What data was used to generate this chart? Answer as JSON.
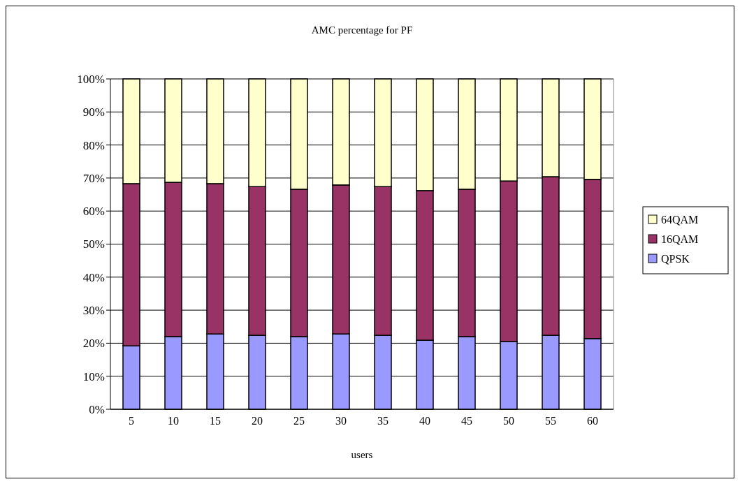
{
  "chart_data": {
    "type": "bar",
    "title": "AMC percentage for PF",
    "xlabel": "users",
    "stacked": true,
    "categories": [
      "5",
      "10",
      "15",
      "20",
      "25",
      "30",
      "35",
      "40",
      "45",
      "50",
      "55",
      "60"
    ],
    "series": [
      {
        "name": "QPSK",
        "color": "#9999ff",
        "values": [
          19.2,
          22.0,
          22.8,
          22.4,
          22.0,
          22.8,
          22.4,
          20.9,
          22.0,
          20.5,
          22.4,
          21.4
        ]
      },
      {
        "name": "16QAM",
        "color": "#993366",
        "values": [
          49.1,
          46.7,
          45.5,
          45.0,
          44.6,
          45.1,
          45.0,
          45.3,
          44.6,
          48.6,
          48.0,
          48.2
        ]
      },
      {
        "name": "64QAM",
        "color": "#ffffcc",
        "values": [
          31.7,
          31.3,
          31.7,
          32.6,
          33.4,
          32.1,
          32.6,
          33.8,
          33.4,
          30.9,
          29.6,
          30.4
        ]
      }
    ],
    "ylim": [
      0,
      100
    ],
    "yticks": [
      {
        "value": 0,
        "label": "0%"
      },
      {
        "value": 10,
        "label": "10%"
      },
      {
        "value": 20,
        "label": "20%"
      },
      {
        "value": 30,
        "label": "30%"
      },
      {
        "value": 40,
        "label": "40%"
      },
      {
        "value": 50,
        "label": "50%"
      },
      {
        "value": 60,
        "label": "60%"
      },
      {
        "value": 70,
        "label": "70%"
      },
      {
        "value": 80,
        "label": "80%"
      },
      {
        "value": 90,
        "label": "90%"
      },
      {
        "value": 100,
        "label": "100%"
      }
    ],
    "grid": "y",
    "legend": "right"
  }
}
